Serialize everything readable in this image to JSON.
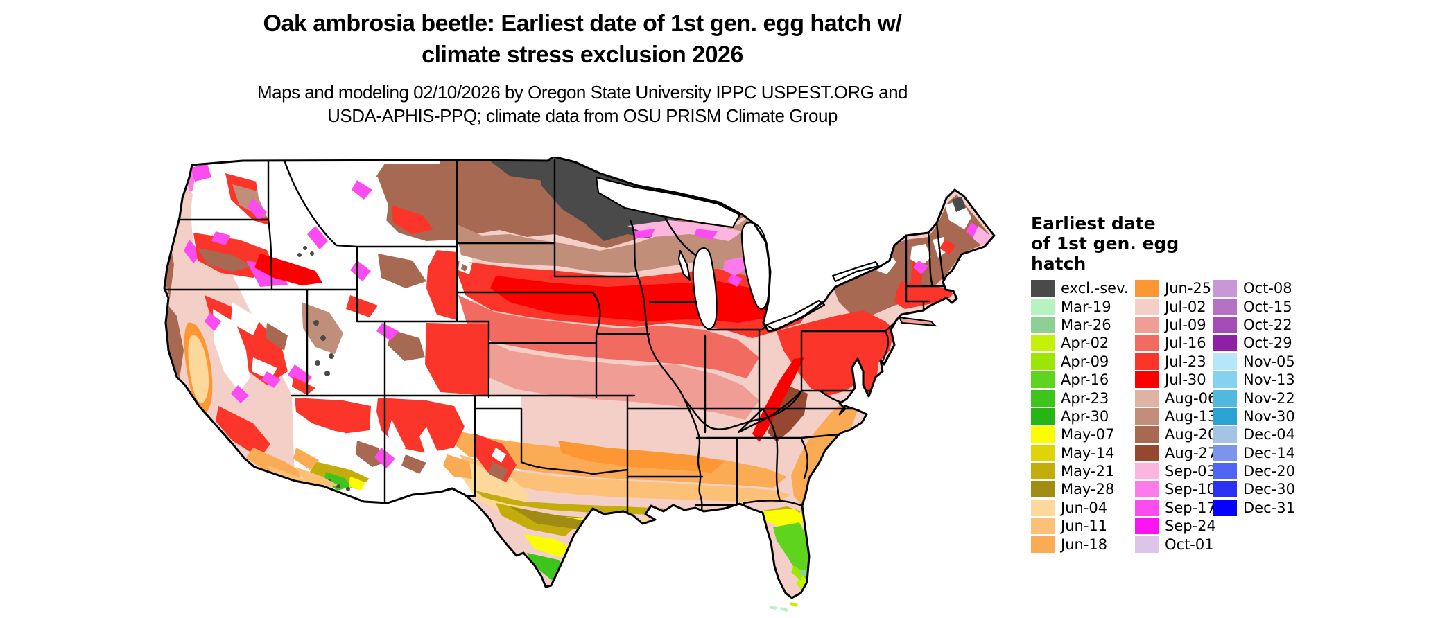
{
  "title": {
    "line1": "Oak ambrosia beetle: Earliest date of 1st gen. egg hatch w/",
    "line2": "climate stress exclusion 2026"
  },
  "subtitle": {
    "line1": "Maps and modeling 02/10/2026 by Oregon State University IPPC USPEST.ORG and",
    "line2": "USDA-APHIS-PPQ; climate data from OSU PRISM Climate Group"
  },
  "legend": {
    "title_lines": [
      "Earliest date",
      "of 1st gen. egg",
      "hatch"
    ],
    "columns": [
      [
        {
          "label": "excl.-sev.",
          "color": "#4a4a4a"
        },
        {
          "label": "Mar-19",
          "color": "#b7f2c3"
        },
        {
          "label": "Mar-26",
          "color": "#8ed093"
        },
        {
          "label": "Apr-02",
          "color": "#c4f207"
        },
        {
          "label": "Apr-09",
          "color": "#9be607"
        },
        {
          "label": "Apr-16",
          "color": "#5ed41f"
        },
        {
          "label": "Apr-23",
          "color": "#3fc41d"
        },
        {
          "label": "Apr-30",
          "color": "#27b516"
        },
        {
          "label": "May-07",
          "color": "#fdfd02"
        },
        {
          "label": "May-14",
          "color": "#dfd406"
        },
        {
          "label": "May-21",
          "color": "#c2ad0d"
        },
        {
          "label": "May-28",
          "color": "#a18c13"
        },
        {
          "label": "Jun-04",
          "color": "#fcd89a"
        },
        {
          "label": "Jun-11",
          "color": "#fcc177"
        },
        {
          "label": "Jun-18",
          "color": "#fcab55"
        }
      ],
      [
        {
          "label": "Jun-25",
          "color": "#fc9733"
        },
        {
          "label": "Jul-02",
          "color": "#f3cfc7"
        },
        {
          "label": "Jul-09",
          "color": "#f09d96"
        },
        {
          "label": "Jul-16",
          "color": "#f26b60"
        },
        {
          "label": "Jul-23",
          "color": "#fb352a"
        },
        {
          "label": "Jul-30",
          "color": "#fc0000"
        },
        {
          "label": "Aug-06",
          "color": "#dfb3a3"
        },
        {
          "label": "Aug-13",
          "color": "#c18e79"
        },
        {
          "label": "Aug-20",
          "color": "#a76951"
        },
        {
          "label": "Aug-27",
          "color": "#954730"
        },
        {
          "label": "Sep-03",
          "color": "#fcb5dc"
        },
        {
          "label": "Sep-10",
          "color": "#fc7ae9"
        },
        {
          "label": "Sep-17",
          "color": "#fc4cf1"
        },
        {
          "label": "Sep-24",
          "color": "#fc13f1"
        },
        {
          "label": "Oct-01",
          "color": "#dcc5e8"
        }
      ],
      [
        {
          "label": "Oct-08",
          "color": "#c997d7"
        },
        {
          "label": "Oct-15",
          "color": "#b770c5"
        },
        {
          "label": "Oct-22",
          "color": "#a34cb5"
        },
        {
          "label": "Oct-29",
          "color": "#8d20a5"
        },
        {
          "label": "Nov-05",
          "color": "#b5e6fc"
        },
        {
          "label": "Nov-13",
          "color": "#84d2ef"
        },
        {
          "label": "Nov-22",
          "color": "#51b8e0"
        },
        {
          "label": "Nov-30",
          "color": "#2aa2d3"
        },
        {
          "label": "Dec-04",
          "color": "#a5c4e5"
        },
        {
          "label": "Dec-14",
          "color": "#7c95eb"
        },
        {
          "label": "Dec-20",
          "color": "#5065f3"
        },
        {
          "label": "Dec-30",
          "color": "#2932f3"
        },
        {
          "label": "Dec-31",
          "color": "#0501fc"
        }
      ]
    ]
  },
  "map": {
    "region": "Contiguous United States",
    "no_data_color": "#ffffff",
    "boundary_color": "#000000"
  }
}
